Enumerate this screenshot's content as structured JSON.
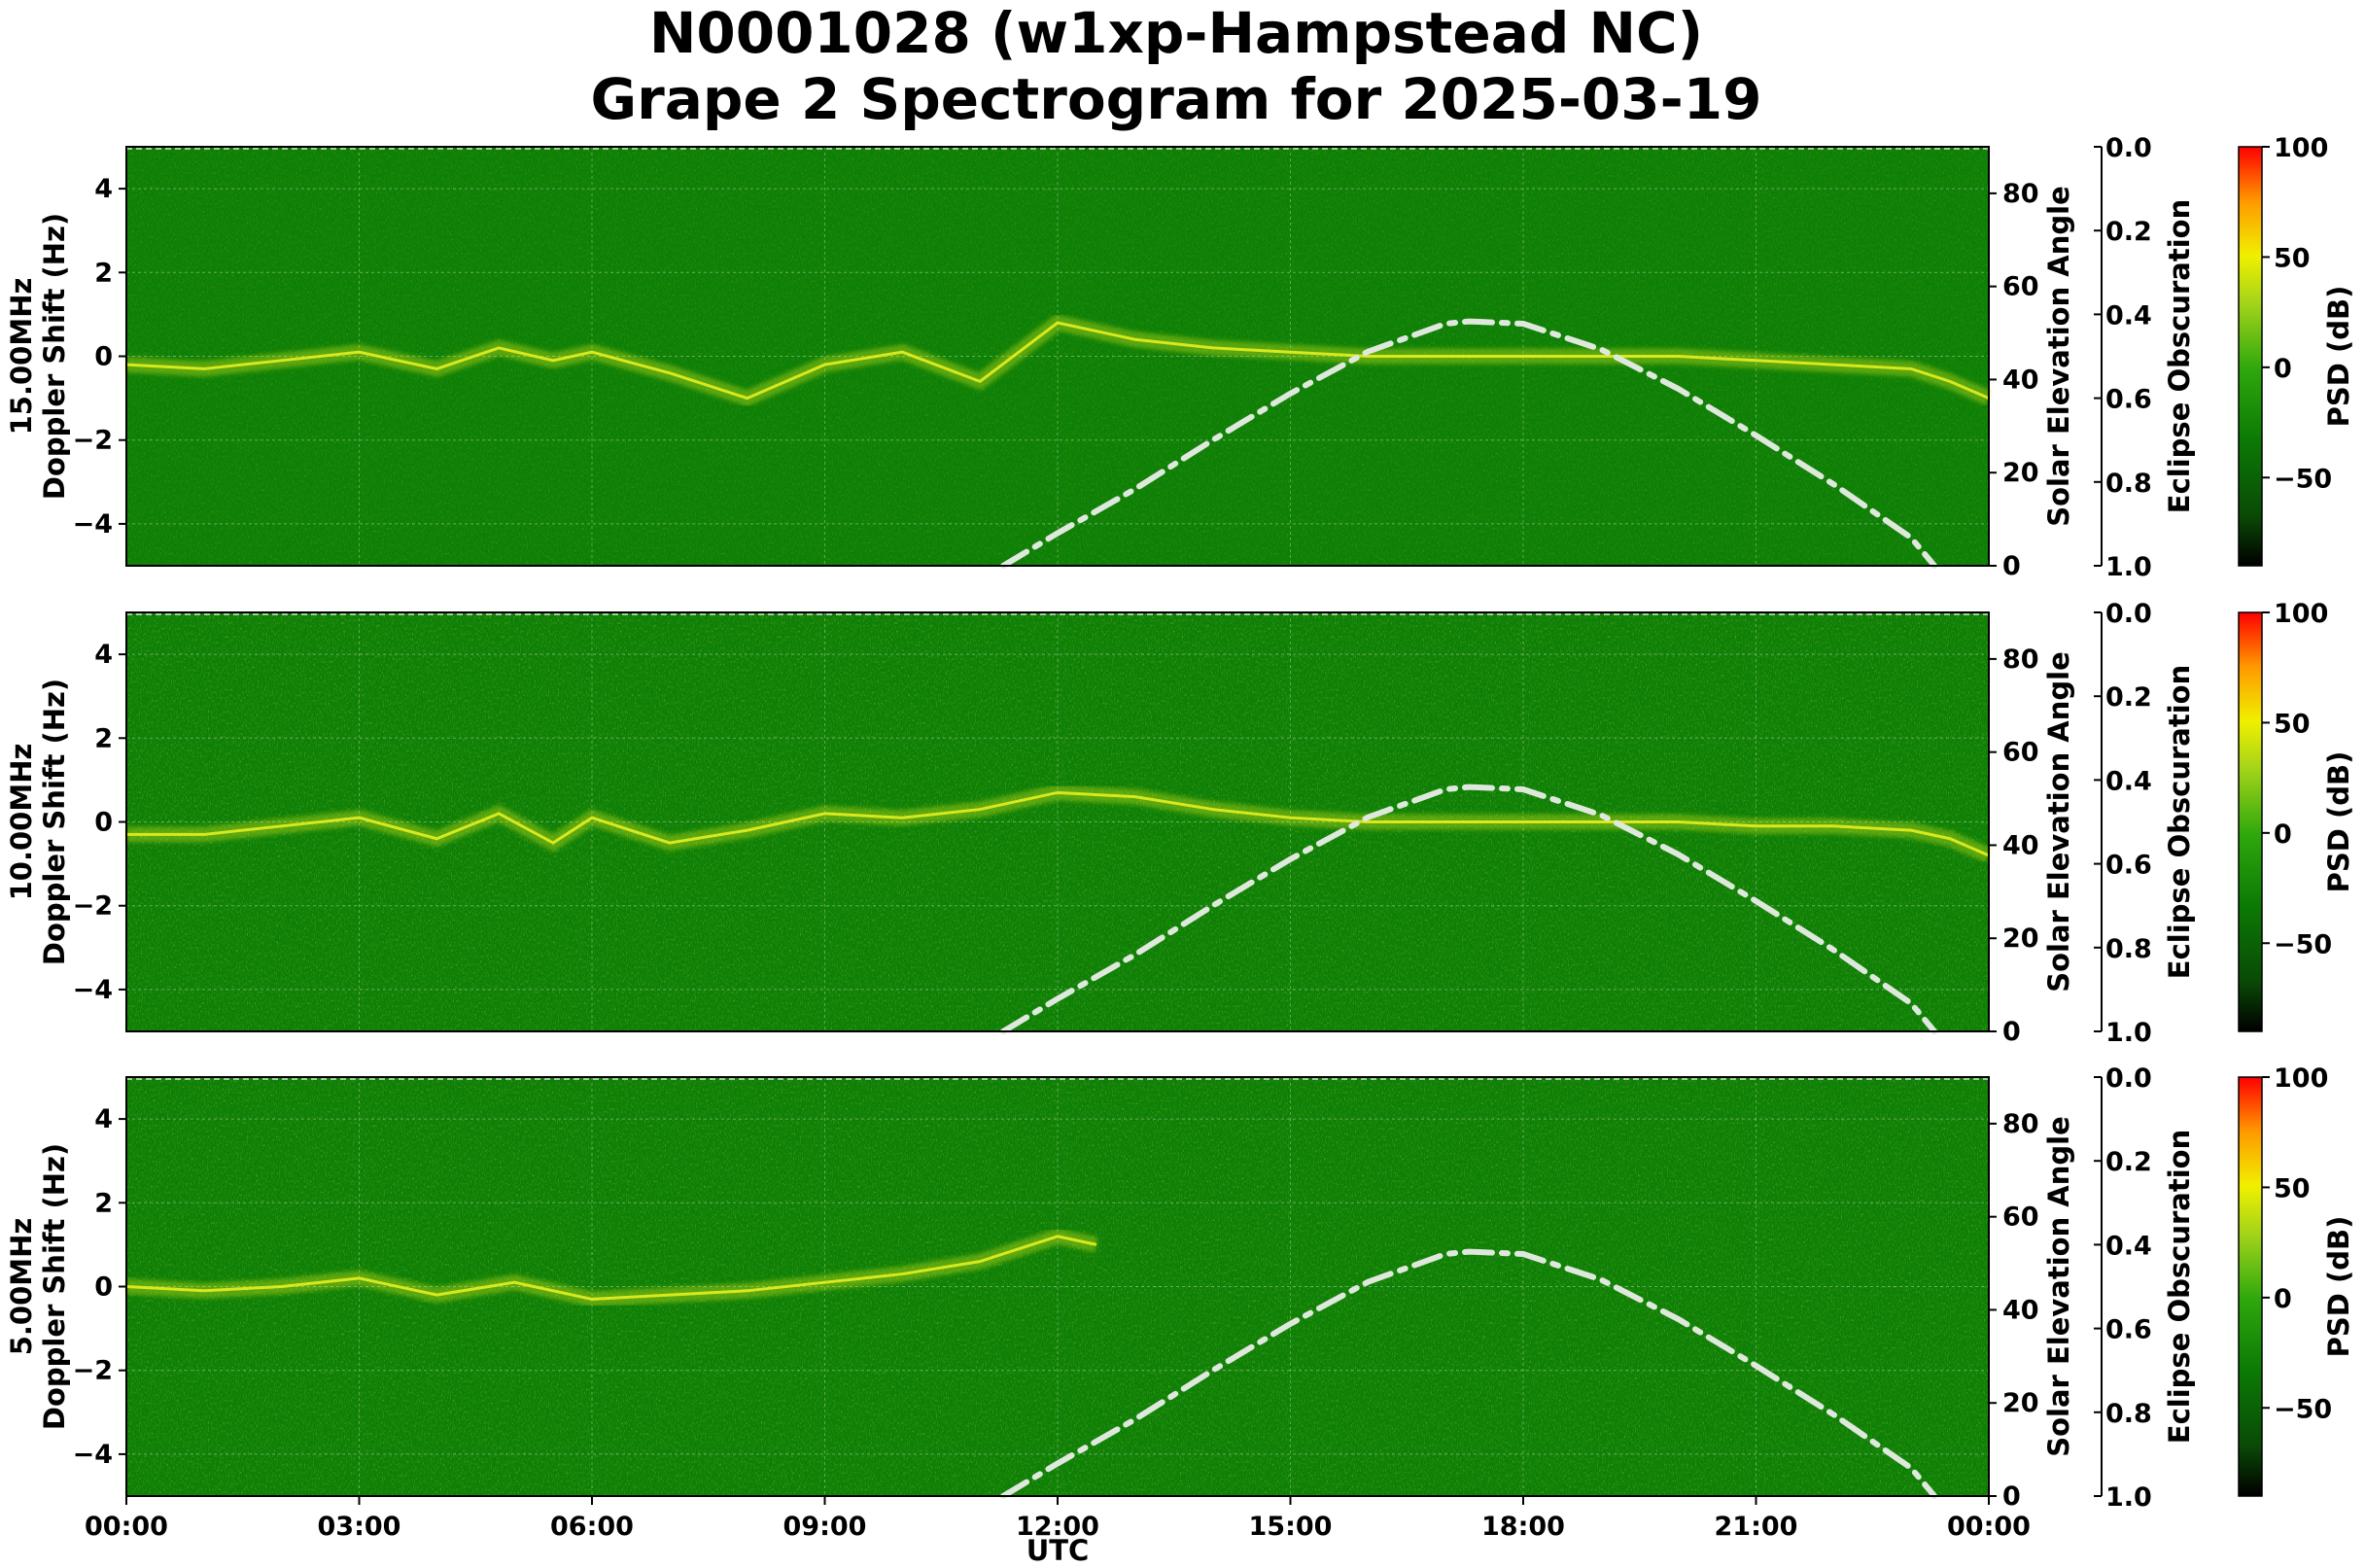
{
  "title": {
    "line1": "N0001028 (w1xp-Hampstead NC)",
    "line2": "Grape 2 Spectrogram for 2025-03-19"
  },
  "colors": {
    "background_green": "#0e7f06",
    "signal_yellow": "#e6ef20",
    "solar_curve": "#dfe8dc",
    "colormap": [
      "#000000",
      "#0a4a06",
      "#0b7a05",
      "#2ea80c",
      "#9fd21a",
      "#f0f000",
      "#ff9900",
      "#ff0000"
    ]
  },
  "chart_data": [
    {
      "type": "heatmap",
      "frequency_label": "15.00MHz",
      "ylabel": "Doppler Shift (Hz)",
      "ylim": [
        -5,
        5
      ],
      "yticks": [
        "4",
        "2",
        "0",
        "−2",
        "−4"
      ],
      "secondary_ylabel": "Solar Elevation Angle",
      "secondary_ylim": [
        0,
        90
      ],
      "secondary_yticks": [
        "80",
        "60",
        "40",
        "20",
        "0"
      ],
      "eclipse_label": "Eclipse Obscuration",
      "eclipse_ticks": [
        "0.0",
        "0.2",
        "0.4",
        "0.6",
        "0.8",
        "1.0"
      ],
      "colorbar_label": "PSD (dB)",
      "colorbar_range": [
        -90,
        100
      ],
      "colorbar_ticks": [
        "100",
        "50",
        "0",
        "−50"
      ],
      "doppler_trace_hours": [
        0,
        1,
        2,
        3,
        4,
        4.8,
        5.5,
        6,
        7,
        8,
        9,
        10,
        11,
        12,
        13,
        14,
        15,
        16,
        17,
        18,
        19,
        20,
        21,
        22,
        23,
        23.5,
        24
      ],
      "doppler_trace_hz": [
        -0.2,
        -0.3,
        -0.1,
        0.1,
        -0.3,
        0.2,
        -0.1,
        0.1,
        -0.4,
        -1.0,
        -0.2,
        0.1,
        -0.6,
        0.8,
        0.4,
        0.2,
        0.1,
        0.0,
        0.0,
        0.0,
        0.0,
        0.0,
        -0.1,
        -0.2,
        -0.3,
        -0.6,
        -1.0
      ]
    },
    {
      "type": "heatmap",
      "frequency_label": "10.00MHz",
      "ylabel": "Doppler Shift (Hz)",
      "ylim": [
        -5,
        5
      ],
      "yticks": [
        "4",
        "2",
        "0",
        "−2",
        "−4"
      ],
      "secondary_ylabel": "Solar Elevation Angle",
      "secondary_ylim": [
        0,
        90
      ],
      "secondary_yticks": [
        "80",
        "60",
        "40",
        "20",
        "0"
      ],
      "eclipse_label": "Eclipse Obscuration",
      "eclipse_ticks": [
        "0.0",
        "0.2",
        "0.4",
        "0.6",
        "0.8",
        "1.0"
      ],
      "colorbar_label": "PSD (dB)",
      "colorbar_range": [
        -90,
        100
      ],
      "colorbar_ticks": [
        "100",
        "50",
        "0",
        "−50"
      ],
      "doppler_trace_hours": [
        0,
        1,
        2,
        3,
        4,
        4.8,
        5.5,
        6,
        7,
        8,
        9,
        10,
        11,
        12,
        13,
        14,
        15,
        16,
        17,
        18,
        19,
        20,
        21,
        22,
        23,
        23.5,
        24
      ],
      "doppler_trace_hz": [
        -0.3,
        -0.3,
        -0.1,
        0.1,
        -0.4,
        0.2,
        -0.5,
        0.1,
        -0.5,
        -0.2,
        0.2,
        0.1,
        0.3,
        0.7,
        0.6,
        0.3,
        0.1,
        0.0,
        0.0,
        0.0,
        0.0,
        0.0,
        -0.1,
        -0.1,
        -0.2,
        -0.4,
        -0.8
      ]
    },
    {
      "type": "heatmap",
      "frequency_label": "5.00MHz",
      "ylabel": "Doppler Shift (Hz)",
      "ylim": [
        -5,
        5
      ],
      "yticks": [
        "4",
        "2",
        "0",
        "−2",
        "−4"
      ],
      "secondary_ylabel": "Solar Elevation Angle",
      "secondary_ylim": [
        0,
        90
      ],
      "secondary_yticks": [
        "80",
        "60",
        "40",
        "20",
        "0"
      ],
      "eclipse_label": "Eclipse Obscuration",
      "eclipse_ticks": [
        "0.0",
        "0.2",
        "0.4",
        "0.6",
        "0.8",
        "1.0"
      ],
      "colorbar_label": "PSD (dB)",
      "colorbar_range": [
        -90,
        100
      ],
      "colorbar_ticks": [
        "100",
        "50",
        "0",
        "−50"
      ],
      "doppler_trace_hours": [
        0,
        1,
        2,
        3,
        4,
        5,
        6,
        7,
        8,
        9,
        10,
        11,
        11.5,
        12,
        12.5
      ],
      "doppler_trace_hz": [
        0.0,
        -0.1,
        0.0,
        0.2,
        -0.2,
        0.1,
        -0.3,
        -0.2,
        -0.1,
        0.1,
        0.3,
        0.6,
        0.9,
        1.2,
        1.0
      ]
    }
  ],
  "solar_elevation": {
    "style": "dash-dot",
    "hours": [
      11.3,
      12,
      13,
      14,
      15,
      16,
      17,
      17.3,
      18,
      19,
      20,
      21,
      22,
      23,
      23.3
    ],
    "degrees": [
      0,
      7,
      16.5,
      27,
      37,
      46,
      52,
      52.5,
      52,
      46.5,
      38,
      28,
      17.5,
      6,
      0
    ]
  },
  "xaxis": {
    "label": "UTC",
    "ticks": [
      "00:00",
      "03:00",
      "06:00",
      "09:00",
      "12:00",
      "15:00",
      "18:00",
      "21:00",
      "00:00"
    ]
  }
}
